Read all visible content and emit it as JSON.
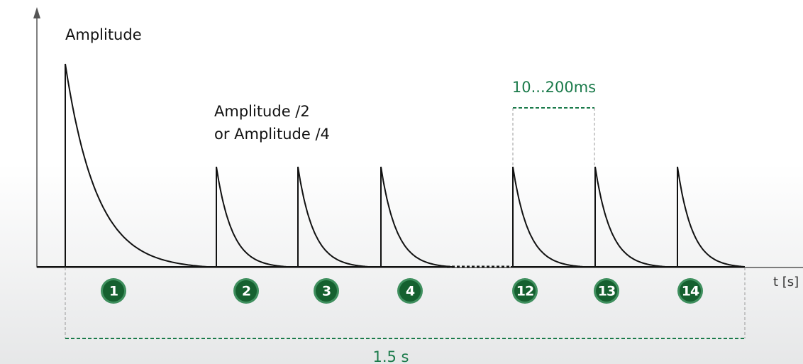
{
  "axis": {
    "y_label": "Amplitude",
    "x_label": "t [s]"
  },
  "annotations": {
    "reduced": [
      "Amplitude /2",
      "or Amplitude /4"
    ],
    "interval": "10...200ms",
    "duration": "1.5 s"
  },
  "pulses": [
    "1",
    "2",
    "3",
    "4",
    "12",
    "13",
    "14"
  ]
}
